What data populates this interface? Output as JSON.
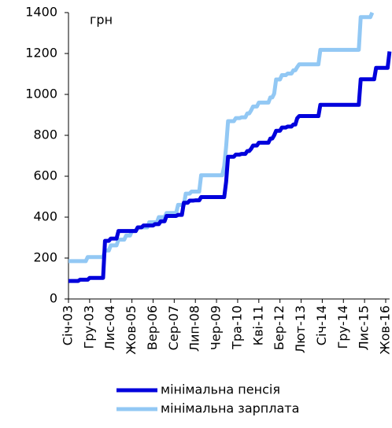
{
  "chart_data": {
    "type": "line",
    "annotation": "грн",
    "categories": [
      "Січ-03",
      null,
      null,
      null,
      null,
      null,
      null,
      null,
      null,
      null,
      null,
      "Гру-03",
      null,
      null,
      null,
      null,
      null,
      null,
      null,
      null,
      null,
      null,
      "Лис-04",
      null,
      null,
      null,
      null,
      null,
      null,
      null,
      null,
      null,
      null,
      "Жов-05",
      null,
      null,
      null,
      null,
      null,
      null,
      null,
      null,
      null,
      null,
      "Вер-06",
      null,
      null,
      null,
      null,
      null,
      null,
      null,
      null,
      null,
      null,
      "Сер-07",
      null,
      null,
      null,
      null,
      null,
      null,
      null,
      null,
      null,
      null,
      "Лип-08",
      null,
      null,
      null,
      null,
      null,
      null,
      null,
      null,
      null,
      null,
      "Чер-09",
      null,
      null,
      null,
      null,
      null,
      null,
      null,
      null,
      null,
      null,
      "Тра-10",
      null,
      null,
      null,
      null,
      null,
      null,
      null,
      null,
      null,
      null,
      "Кві-11",
      null,
      null,
      null,
      null,
      null,
      null,
      null,
      null,
      null,
      null,
      "Бер-12",
      null,
      null,
      null,
      null,
      null,
      null,
      null,
      null,
      null,
      null,
      "Лют-13",
      null,
      null,
      null,
      null,
      null,
      null,
      null,
      null,
      null,
      null,
      "Січ-14",
      null,
      null,
      null,
      null,
      null,
      null,
      null,
      null,
      null,
      null,
      "Гру-14",
      null,
      null,
      null,
      null,
      null,
      null,
      null,
      null,
      null,
      null,
      "Лис-15",
      null,
      null,
      null,
      null,
      null,
      null,
      null,
      null,
      null,
      null,
      "Жов-16",
      null,
      null
    ],
    "series": [
      {
        "name": "мінімальна зарплата",
        "color": "#92c8f4",
        "values": [
          185,
          185,
          185,
          185,
          185,
          185,
          185,
          185,
          185,
          185,
          205,
          205,
          205,
          205,
          205,
          205,
          205,
          205,
          205,
          237,
          237,
          237,
          262,
          262,
          262,
          262,
          290,
          290,
          290,
          290,
          310,
          310,
          310,
          332,
          332,
          332,
          350,
          350,
          350,
          350,
          350,
          350,
          375,
          375,
          375,
          375,
          375,
          400,
          400,
          400,
          400,
          420,
          420,
          420,
          420,
          420,
          420,
          460,
          460,
          460,
          460,
          515,
          515,
          515,
          525,
          525,
          525,
          525,
          525,
          605,
          605,
          605,
          605,
          605,
          605,
          605,
          605,
          605,
          605,
          605,
          605,
          650,
          744,
          869,
          869,
          869,
          869,
          884,
          884,
          884,
          888,
          888,
          888,
          907,
          907,
          922,
          941,
          941,
          941,
          960,
          960,
          960,
          960,
          960,
          960,
          985,
          985,
          1004,
          1073,
          1073,
          1073,
          1094,
          1094,
          1094,
          1102,
          1102,
          1102,
          1118,
          1118,
          1134,
          1147,
          1147,
          1147,
          1147,
          1147,
          1147,
          1147,
          1147,
          1147,
          1147,
          1147,
          1218,
          1218,
          1218,
          1218,
          1218,
          1218,
          1218,
          1218,
          1218,
          1218,
          1218,
          1218,
          1218,
          1218,
          1218,
          1218,
          1218,
          1218,
          1218,
          1218,
          1218,
          1378,
          1378,
          1378,
          1378,
          1378,
          1378,
          1400,
          null,
          null,
          null,
          null,
          null,
          null,
          null,
          null,
          null
        ]
      },
      {
        "name": "мінімальна пенсія",
        "color": "#0000dc",
        "values": [
          88,
          88,
          88,
          88,
          88,
          88,
          94,
          94,
          94,
          94,
          94,
          103,
          103,
          103,
          103,
          103,
          103,
          103,
          103,
          284,
          284,
          284,
          295,
          295,
          295,
          295,
          332,
          332,
          332,
          332,
          332,
          332,
          332,
          332,
          332,
          332,
          350,
          350,
          350,
          359,
          359,
          359,
          359,
          359,
          359,
          366,
          366,
          366,
          380,
          380,
          380,
          406,
          406,
          406,
          406,
          406,
          406,
          411,
          411,
          411,
          470,
          470,
          470,
          481,
          481,
          481,
          482,
          482,
          482,
          498,
          498,
          498,
          498,
          498,
          498,
          498,
          498,
          498,
          498,
          498,
          498,
          498,
          573,
          695,
          695,
          695,
          695,
          706,
          706,
          706,
          709,
          709,
          709,
          723,
          723,
          734,
          750,
          750,
          750,
          764,
          764,
          764,
          764,
          764,
          764,
          784,
          784,
          800,
          822,
          822,
          822,
          838,
          838,
          838,
          843,
          843,
          843,
          853,
          853,
          884,
          894,
          894,
          894,
          894,
          894,
          894,
          894,
          894,
          894,
          894,
          894,
          949,
          949,
          949,
          949,
          949,
          949,
          949,
          949,
          949,
          949,
          949,
          949,
          949,
          949,
          949,
          949,
          949,
          949,
          949,
          949,
          949,
          1074,
          1074,
          1074,
          1074,
          1074,
          1074,
          1074,
          1074,
          1130,
          1130,
          1130,
          1130,
          1130,
          1130,
          1130,
          1210
        ]
      }
    ],
    "ylim": [
      0,
      1400
    ],
    "yticks": [
      0,
      200,
      400,
      600,
      800,
      1000,
      1200,
      1400
    ],
    "grid": false,
    "legend": "bottom"
  }
}
